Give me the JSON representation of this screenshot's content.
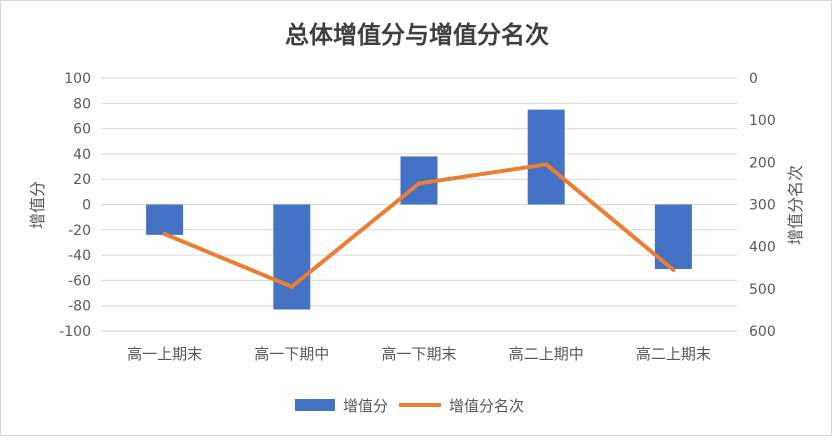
{
  "chart_data": {
    "type": "bar",
    "title": "总体增值分与增值分名次",
    "categories": [
      "高一上期末",
      "高一下期中",
      "高一下期末",
      "高二上期中",
      "高二上期末"
    ],
    "series": [
      {
        "name": "增值分",
        "type": "bar",
        "axis": "left",
        "color": "#4472C4",
        "values": [
          -24,
          -83,
          38,
          75,
          -51
        ]
      },
      {
        "name": "增值分名次",
        "type": "line",
        "axis": "right",
        "color": "#ED7D31",
        "values": [
          370,
          495,
          250,
          205,
          455
        ]
      }
    ],
    "ylabel": "增值分",
    "ylim": [
      -100,
      100
    ],
    "yticks": [
      -100,
      -80,
      -60,
      -40,
      -20,
      0,
      20,
      40,
      60,
      80,
      100
    ],
    "y2label": "增值分名次",
    "y2lim": [
      0,
      600
    ],
    "y2reversed": true,
    "y2ticks": [
      0,
      100,
      200,
      300,
      400,
      500,
      600
    ],
    "grid": true,
    "legend_position": "bottom"
  }
}
